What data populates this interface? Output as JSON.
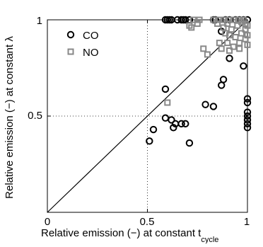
{
  "chart_data": {
    "type": "scatter",
    "xlabel": "Relative emission (−) at constant t",
    "xlabel_subscript": "cycle",
    "ylabel": "Relative emission (−) at constant λ",
    "xlim": [
      0,
      1
    ],
    "ylim": [
      0,
      1
    ],
    "x_ticks": [
      "0",
      "0.5",
      "1"
    ],
    "y_ticks": [
      "0.5",
      "1"
    ],
    "grid": "dotted lines at 0.5",
    "reference_line": "y = x",
    "legend_position": "top-left",
    "series": [
      {
        "name": "CO",
        "marker": "circle",
        "color": "#000000",
        "points": [
          [
            0.59,
            1.0
          ],
          [
            0.6,
            1.0
          ],
          [
            0.61,
            1.0
          ],
          [
            0.62,
            1.0
          ],
          [
            0.65,
            1.0
          ],
          [
            0.67,
            1.0
          ],
          [
            0.68,
            1.0
          ],
          [
            0.69,
            1.0
          ],
          [
            0.71,
            1.0
          ],
          [
            0.83,
            1.0
          ],
          [
            0.84,
            1.0
          ],
          [
            0.89,
            1.0
          ],
          [
            0.91,
            1.0
          ],
          [
            0.94,
            1.0
          ],
          [
            0.96,
            1.0
          ],
          [
            0.98,
            1.0
          ],
          [
            1.0,
            1.0
          ],
          [
            0.87,
            0.94
          ],
          [
            0.91,
            0.8
          ],
          [
            0.98,
            0.76
          ],
          [
            0.88,
            0.69
          ],
          [
            0.87,
            0.66
          ],
          [
            1.0,
            0.59
          ],
          [
            1.0,
            0.57
          ],
          [
            1.0,
            0.52
          ],
          [
            1.0,
            0.5
          ],
          [
            1.0,
            0.48
          ],
          [
            1.0,
            0.46
          ],
          [
            1.0,
            0.44
          ],
          [
            0.59,
            0.64
          ],
          [
            0.59,
            0.49
          ],
          [
            0.62,
            0.48
          ],
          [
            0.64,
            0.46
          ],
          [
            0.67,
            0.46
          ],
          [
            0.69,
            0.46
          ],
          [
            0.63,
            0.44
          ],
          [
            0.53,
            0.43
          ],
          [
            0.51,
            0.37
          ],
          [
            0.71,
            0.36
          ],
          [
            0.79,
            0.56
          ],
          [
            0.83,
            0.55
          ]
        ]
      },
      {
        "name": "NO",
        "marker": "square",
        "color": "#888888",
        "points": [
          [
            0.73,
            1.0
          ],
          [
            0.76,
            1.0
          ],
          [
            0.83,
            1.0
          ],
          [
            0.86,
            1.0
          ],
          [
            0.88,
            1.0
          ],
          [
            0.91,
            1.0
          ],
          [
            0.93,
            1.0
          ],
          [
            0.96,
            1.0
          ],
          [
            0.98,
            1.0
          ],
          [
            0.71,
            0.97
          ],
          [
            0.72,
            0.96
          ],
          [
            0.75,
            0.98
          ],
          [
            0.85,
            0.98
          ],
          [
            0.88,
            0.96
          ],
          [
            0.9,
            0.98
          ],
          [
            0.92,
            0.95
          ],
          [
            0.95,
            0.97
          ],
          [
            0.97,
            0.99
          ],
          [
            0.99,
            0.98
          ],
          [
            0.89,
            0.93
          ],
          [
            0.91,
            0.92
          ],
          [
            0.94,
            0.91
          ],
          [
            0.97,
            0.93
          ],
          [
            0.99,
            0.95
          ],
          [
            1.0,
            0.97
          ],
          [
            0.86,
            0.88
          ],
          [
            0.9,
            0.88
          ],
          [
            0.93,
            0.86
          ],
          [
            0.96,
            0.88
          ],
          [
            0.99,
            0.9
          ],
          [
            1.0,
            0.92
          ],
          [
            0.87,
            0.85
          ],
          [
            0.91,
            0.84
          ],
          [
            0.96,
            0.85
          ],
          [
            1.0,
            0.87
          ],
          [
            0.78,
            0.85
          ],
          [
            0.8,
            0.82
          ],
          [
            0.6,
            0.57
          ]
        ]
      }
    ]
  }
}
